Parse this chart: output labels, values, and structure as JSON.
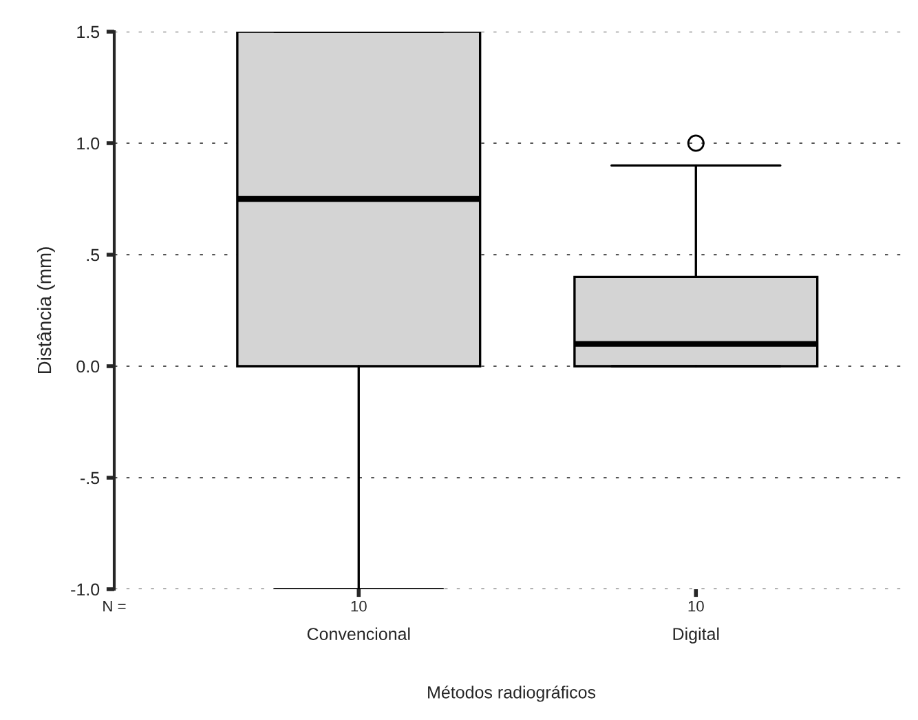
{
  "chart_data": {
    "type": "box",
    "categories": [
      "Convencional",
      "Digital"
    ],
    "boxes": [
      {
        "low": -1.0,
        "q1": 0.0,
        "median": 0.75,
        "q3": 1.5,
        "high": 1.5
      },
      {
        "low": 0.0,
        "q1": 0.0,
        "median": 0.1,
        "q3": 0.4,
        "high": 0.9,
        "outliers": [
          1.0
        ]
      }
    ],
    "color": "#d4d4d4",
    "xlabel": "Métodos radiográficos",
    "ylabel": "Distância (mm)",
    "ylim": [
      -1.0,
      1.5
    ],
    "yticks": [
      {
        "value": -1.0,
        "label": "-1.0"
      },
      {
        "value": -0.5,
        "label": "-.5"
      },
      {
        "value": 0.0,
        "label": "0.0"
      },
      {
        "value": 0.5,
        "label": ".5"
      },
      {
        "value": 1.0,
        "label": "1.0"
      },
      {
        "value": 1.5,
        "label": "1.5"
      }
    ],
    "grid": "y",
    "annotations": [
      "N =",
      "10",
      "10"
    ]
  }
}
